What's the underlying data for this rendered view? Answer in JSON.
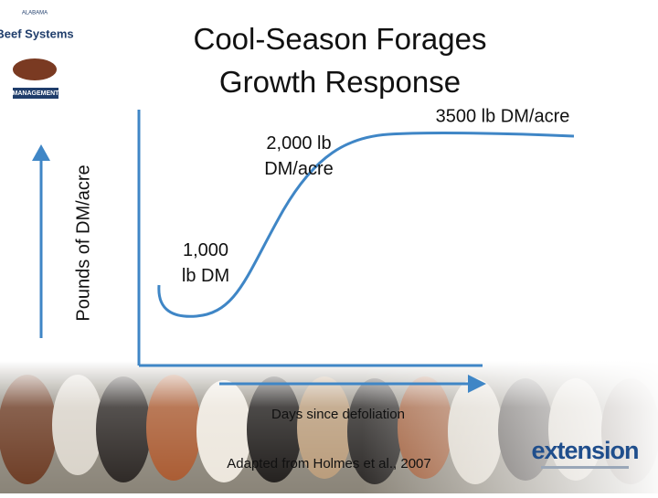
{
  "title": "Cool-Season Forages Growth Response",
  "logo": {
    "top": "ALABAMA",
    "name": "Beef Systems",
    "bottom": "MANAGEMENT"
  },
  "diagram": {
    "y_axis_label": "Pounds of DM/acre",
    "x_axis_label": "Days since defoliation",
    "annotations": [
      "1,000 lb DM",
      "2,000 lb DM/acre",
      "3500 lb DM/acre"
    ]
  },
  "source": "Adapted from Holmes et al., 2007",
  "footer_logo": "extension"
}
